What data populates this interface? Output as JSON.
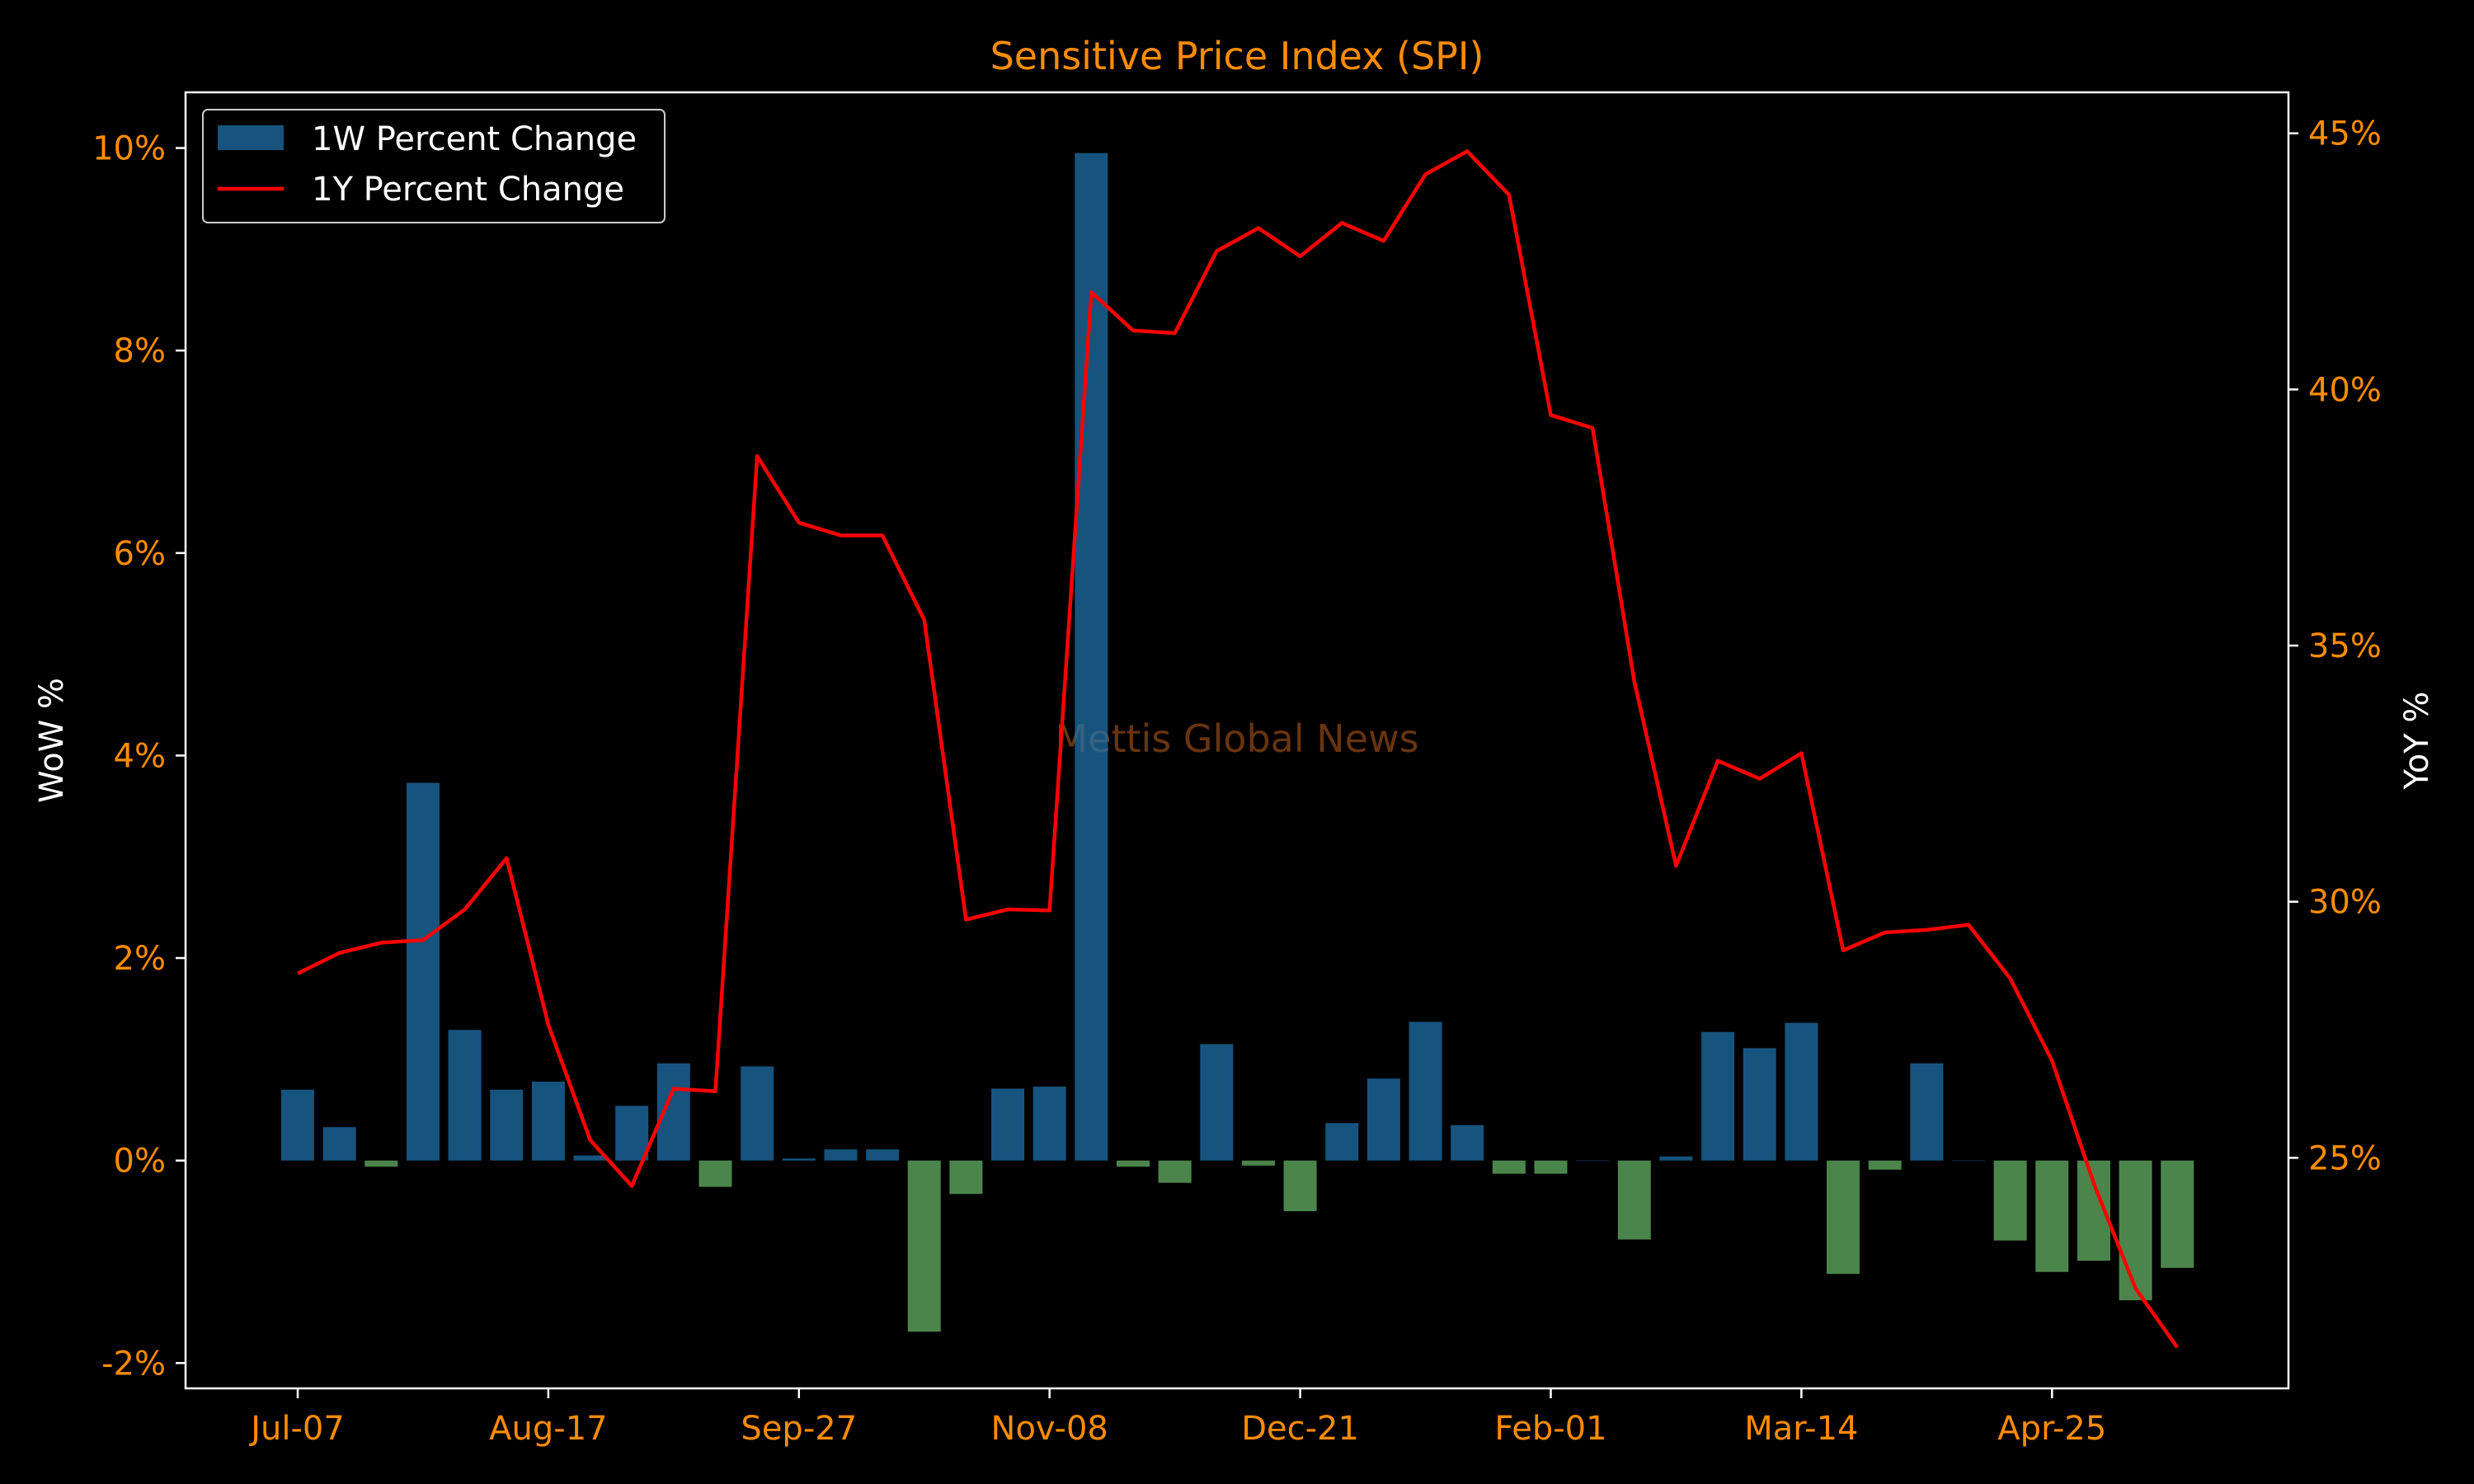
{
  "chart_data": {
    "type": "bar",
    "title": "Sensitive Price Index (SPI)",
    "watermark": "Mettis Global News",
    "x_tick_labels": [
      "Jul-07",
      "Aug-17",
      "Sep-27",
      "Nov-08",
      "Dec-21",
      "Feb-01",
      "Mar-14",
      "Apr-25"
    ],
    "x_tick_index": [
      0,
      6,
      12,
      18,
      24,
      30,
      36,
      42
    ],
    "left_axis": {
      "label": "WoW %",
      "ylim": [
        -2.25,
        10.55
      ],
      "ticks": [
        -2,
        0,
        2,
        4,
        6,
        8,
        10
      ],
      "tick_labels": [
        "-2%",
        "0%",
        "2%",
        "4%",
        "6%",
        "8%",
        "10%"
      ]
    },
    "right_axis": {
      "label": "YoY %",
      "ylim": [
        20.5,
        45.8
      ],
      "ticks": [
        25,
        30,
        35,
        40,
        45
      ],
      "tick_labels": [
        "25%",
        "30%",
        "35%",
        "40%",
        "45%"
      ]
    },
    "series": [
      {
        "name": "1W Percent Change",
        "kind": "bar",
        "axis": "left",
        "positive_color": "#1f77b4",
        "negative_color": "#6cbd6c",
        "values": [
          0.7,
          0.33,
          -0.06,
          3.73,
          1.29,
          0.7,
          0.78,
          0.05,
          0.54,
          0.96,
          -0.26,
          0.93,
          0.02,
          0.11,
          0.11,
          -1.69,
          -0.33,
          0.71,
          0.73,
          9.95,
          -0.06,
          -0.22,
          1.15,
          -0.05,
          -0.5,
          0.37,
          0.81,
          1.37,
          0.35,
          -0.13,
          -0.13,
          0.0,
          -0.78,
          0.04,
          1.27,
          1.11,
          1.36,
          -1.12,
          -0.09,
          0.96,
          0.0,
          -0.79,
          -1.1,
          -0.99,
          -1.38,
          -1.06
        ]
      },
      {
        "name": "1Y Percent Change",
        "kind": "line",
        "axis": "right",
        "color": "#ff0000",
        "values": [
          28.6,
          29.0,
          29.2,
          29.25,
          29.85,
          30.85,
          27.6,
          25.35,
          24.45,
          26.35,
          26.3,
          38.7,
          37.4,
          37.15,
          37.15,
          35.5,
          29.65,
          29.85,
          29.83,
          41.9,
          41.15,
          41.1,
          42.7,
          43.15,
          42.6,
          43.25,
          42.9,
          44.2,
          44.65,
          43.8,
          39.5,
          39.25,
          34.3,
          30.7,
          32.75,
          32.4,
          32.9,
          29.05,
          29.4,
          29.45,
          29.55,
          28.5,
          26.9,
          24.5,
          22.45,
          21.3
        ]
      }
    ],
    "legend": {
      "placement": "top-left",
      "entries": [
        "1W Percent Change",
        "1Y Percent Change"
      ]
    },
    "grid": false,
    "colors": {
      "background": "#000000",
      "axes": "#ffffff",
      "tick_labels": "#ff8c00",
      "axis_titles": "#ffffff",
      "title": "#ff8c00",
      "watermark": "#8b4513"
    }
  }
}
